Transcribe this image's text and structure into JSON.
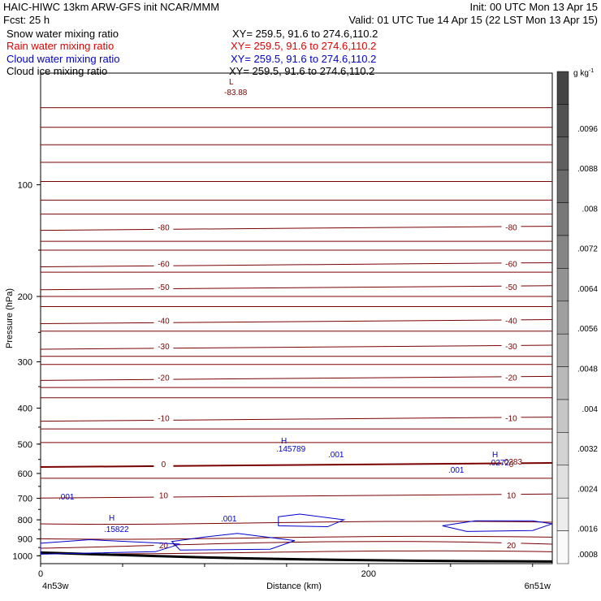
{
  "header": {
    "title_left": "HAIC-HIWC 13km ARW-GFS init   NCAR/MMM",
    "init": "Init: 00 UTC Mon 13 Apr 15",
    "fcst": "Fcst:    25 h",
    "valid": "Valid: 01 UTC Tue 14 Apr 15 (22 LST Mon 13 Apr 15)"
  },
  "fields": [
    {
      "name": "Snow water mixing ratio",
      "xy": "XY= 259.5, 91.6 to 274.6,110.2",
      "color": "#000000"
    },
    {
      "name": "Rain water mixing ratio",
      "xy": "XY= 259.5, 91.6 to 274.6,110.2",
      "color": "#e00000"
    },
    {
      "name": "Cloud water mixing ratio",
      "xy": "XY= 259.5, 91.6 to 274.6,110.2",
      "color": "#0000cc"
    },
    {
      "name": "Cloud ice mixing ratio",
      "xy": "XY= 259.5, 91.6 to 274.6,110.2",
      "color": "#000000"
    }
  ],
  "axes": {
    "ylabel": "Pressure (hPa)",
    "xlabel": "Distance (km)",
    "left_endpoint": "4n53w",
    "right_endpoint": "6n51w",
    "x_ticks": [
      "0",
      "200"
    ],
    "y_ticks": [
      "100",
      "200",
      "300",
      "400",
      "500",
      "600",
      "700",
      "800",
      "900",
      "1000"
    ]
  },
  "colorbar": {
    "unit": "g kg",
    "unit_exp": "-1",
    "labels": [
      ".0096",
      ".0088",
      ".008",
      ".0072",
      ".0064",
      ".0056",
      ".0048",
      ".004",
      ".0032",
      ".0024",
      ".0016",
      ".0008"
    ],
    "gray_top": "#444444",
    "gray_bottom": "#fafafa"
  },
  "chart_data": {
    "type": "contour",
    "x_range_km": [
      0,
      312
    ],
    "y_range_hPa": [
      50,
      1050
    ],
    "y_scale": "log",
    "temperature_contours": [
      {
        "label": "-80",
        "p": 130
      },
      {
        "label": "-60",
        "p": 163
      },
      {
        "label": "-50",
        "p": 188
      },
      {
        "label": "-40",
        "p": 232
      },
      {
        "label": "-30",
        "p": 272
      },
      {
        "label": "-20",
        "p": 330
      },
      {
        "label": "-10",
        "p": 425
      },
      {
        "label": "0",
        "p": 565
      },
      {
        "label": "10",
        "p": 685
      },
      {
        "label": "20",
        "p": 935
      }
    ],
    "extrema": [
      {
        "type": "L",
        "value": "-83.88"
      },
      {
        "type": "H",
        "value": ".145789"
      },
      {
        "type": "H",
        "value": ".15822"
      },
      {
        "type": "H",
        "value": ".0272"
      },
      {
        "type": "H",
        "value": ".0283"
      }
    ],
    "cloud_water_labels": [
      ".001",
      ".001",
      ".001",
      ".001"
    ]
  }
}
